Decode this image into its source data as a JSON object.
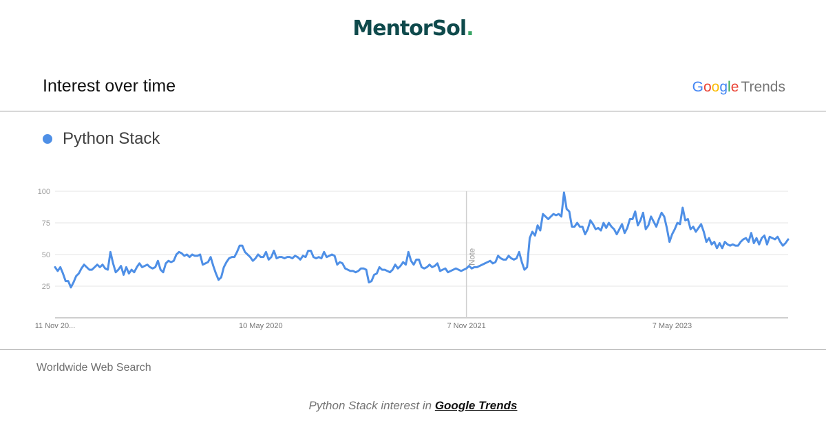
{
  "brand": {
    "logo_text": "MentorSol",
    "logo_dot": "."
  },
  "header": {
    "title": "Interest over time",
    "logo_google": [
      "G",
      "o",
      "o",
      "g",
      "l",
      "e"
    ],
    "logo_trends": "Trends"
  },
  "legend": {
    "label": "Python Stack",
    "color": "#4e8fe6"
  },
  "footer": {
    "region": "Worldwide Web Search",
    "caption_prefix": "Python Stack interest in ",
    "caption_link": "Google Trends"
  },
  "chart_data": {
    "type": "line",
    "title": "Interest over time",
    "xlabel": "",
    "ylabel": "",
    "ylim": [
      0,
      100
    ],
    "y_ticks": [
      100,
      75,
      50,
      25
    ],
    "grid": true,
    "x_start": "2018-11-11",
    "x_step_days": 7,
    "x_ticks": [
      {
        "label": "11 Nov 20...",
        "date": "2018-11-11"
      },
      {
        "label": "10 May 2020",
        "date": "2020-05-10"
      },
      {
        "label": "7 Nov 2021",
        "date": "2021-11-07"
      },
      {
        "label": "7 May 2023",
        "date": "2023-05-07"
      }
    ],
    "annotations": [
      {
        "label": "Note",
        "date": "2021-11-07"
      }
    ],
    "series": [
      {
        "name": "Python Stack",
        "color": "#4e8fe6",
        "values": [
          40,
          37,
          40,
          35,
          29,
          29,
          24,
          28,
          33,
          35,
          39,
          42,
          40,
          38,
          38,
          40,
          42,
          40,
          42,
          39,
          38,
          52,
          43,
          36,
          38,
          41,
          34,
          40,
          35,
          38,
          36,
          40,
          43,
          40,
          41,
          42,
          40,
          39,
          40,
          45,
          38,
          36,
          43,
          45,
          44,
          45,
          50,
          52,
          51,
          49,
          50,
          48,
          50,
          49,
          49,
          50,
          42,
          43,
          44,
          48,
          41,
          35,
          30,
          32,
          40,
          44,
          47,
          48,
          48,
          52,
          57,
          57,
          52,
          50,
          48,
          45,
          47,
          50,
          48,
          48,
          52,
          46,
          48,
          53,
          47,
          48,
          48,
          47,
          48,
          48,
          47,
          49,
          48,
          46,
          49,
          48,
          53,
          53,
          48,
          47,
          48,
          47,
          52,
          48,
          49,
          50,
          49,
          42,
          44,
          43,
          39,
          38,
          37,
          37,
          36,
          37,
          39,
          39,
          38,
          28,
          29,
          34,
          35,
          40,
          38,
          38,
          37,
          36,
          38,
          42,
          39,
          41,
          44,
          42,
          52,
          45,
          42,
          46,
          46,
          40,
          39,
          40,
          42,
          40,
          41,
          43,
          37,
          38,
          39,
          36,
          37,
          38,
          39,
          38,
          37,
          38,
          39,
          41,
          39,
          40,
          40,
          41,
          42,
          43,
          44,
          45,
          43,
          44,
          49,
          47,
          46,
          46,
          49,
          47,
          46,
          47,
          52,
          44,
          38,
          40,
          63,
          68,
          65,
          73,
          69,
          82,
          80,
          78,
          80,
          82,
          81,
          82,
          80,
          99,
          86,
          84,
          72,
          72,
          75,
          72,
          72,
          66,
          70,
          77,
          74,
          70,
          71,
          69,
          75,
          71,
          75,
          72,
          70,
          66,
          70,
          74,
          67,
          71,
          78,
          78,
          84,
          73,
          77,
          83,
          70,
          73,
          80,
          76,
          72,
          78,
          83,
          80,
          71,
          60,
          66,
          70,
          75,
          74,
          87,
          77,
          78,
          70,
          72,
          68,
          71,
          74,
          68,
          60,
          63,
          58,
          60,
          55,
          59,
          55,
          60,
          58,
          57,
          58,
          57,
          57,
          60,
          62,
          63,
          60,
          67,
          59,
          63,
          58,
          63,
          65,
          58,
          64,
          63,
          62,
          64,
          60,
          57,
          59,
          62
        ]
      }
    ]
  }
}
